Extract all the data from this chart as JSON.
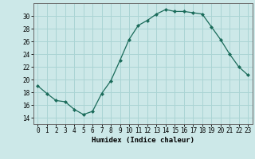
{
  "x": [
    0,
    1,
    2,
    3,
    4,
    5,
    6,
    7,
    8,
    9,
    10,
    11,
    12,
    13,
    14,
    15,
    16,
    17,
    18,
    19,
    20,
    21,
    22,
    23
  ],
  "y": [
    19.0,
    17.8,
    16.7,
    16.5,
    15.3,
    14.5,
    15.0,
    17.8,
    19.8,
    23.0,
    26.3,
    28.5,
    29.3,
    30.3,
    31.0,
    30.7,
    30.7,
    30.5,
    30.3,
    28.3,
    26.3,
    24.0,
    22.0,
    20.7
  ],
  "line_color": "#1a6b5a",
  "marker": "D",
  "marker_size": 2,
  "bg_color": "#cce8e8",
  "grid_color": "#aad4d4",
  "xlabel": "Humidex (Indice chaleur)",
  "ylim": [
    13,
    32
  ],
  "xlim": [
    -0.5,
    23.5
  ],
  "yticks": [
    14,
    16,
    18,
    20,
    22,
    24,
    26,
    28,
    30
  ],
  "xticks": [
    0,
    1,
    2,
    3,
    4,
    5,
    6,
    7,
    8,
    9,
    10,
    11,
    12,
    13,
    14,
    15,
    16,
    17,
    18,
    19,
    20,
    21,
    22,
    23
  ],
  "label_fontsize": 6.5,
  "tick_fontsize": 5.5
}
